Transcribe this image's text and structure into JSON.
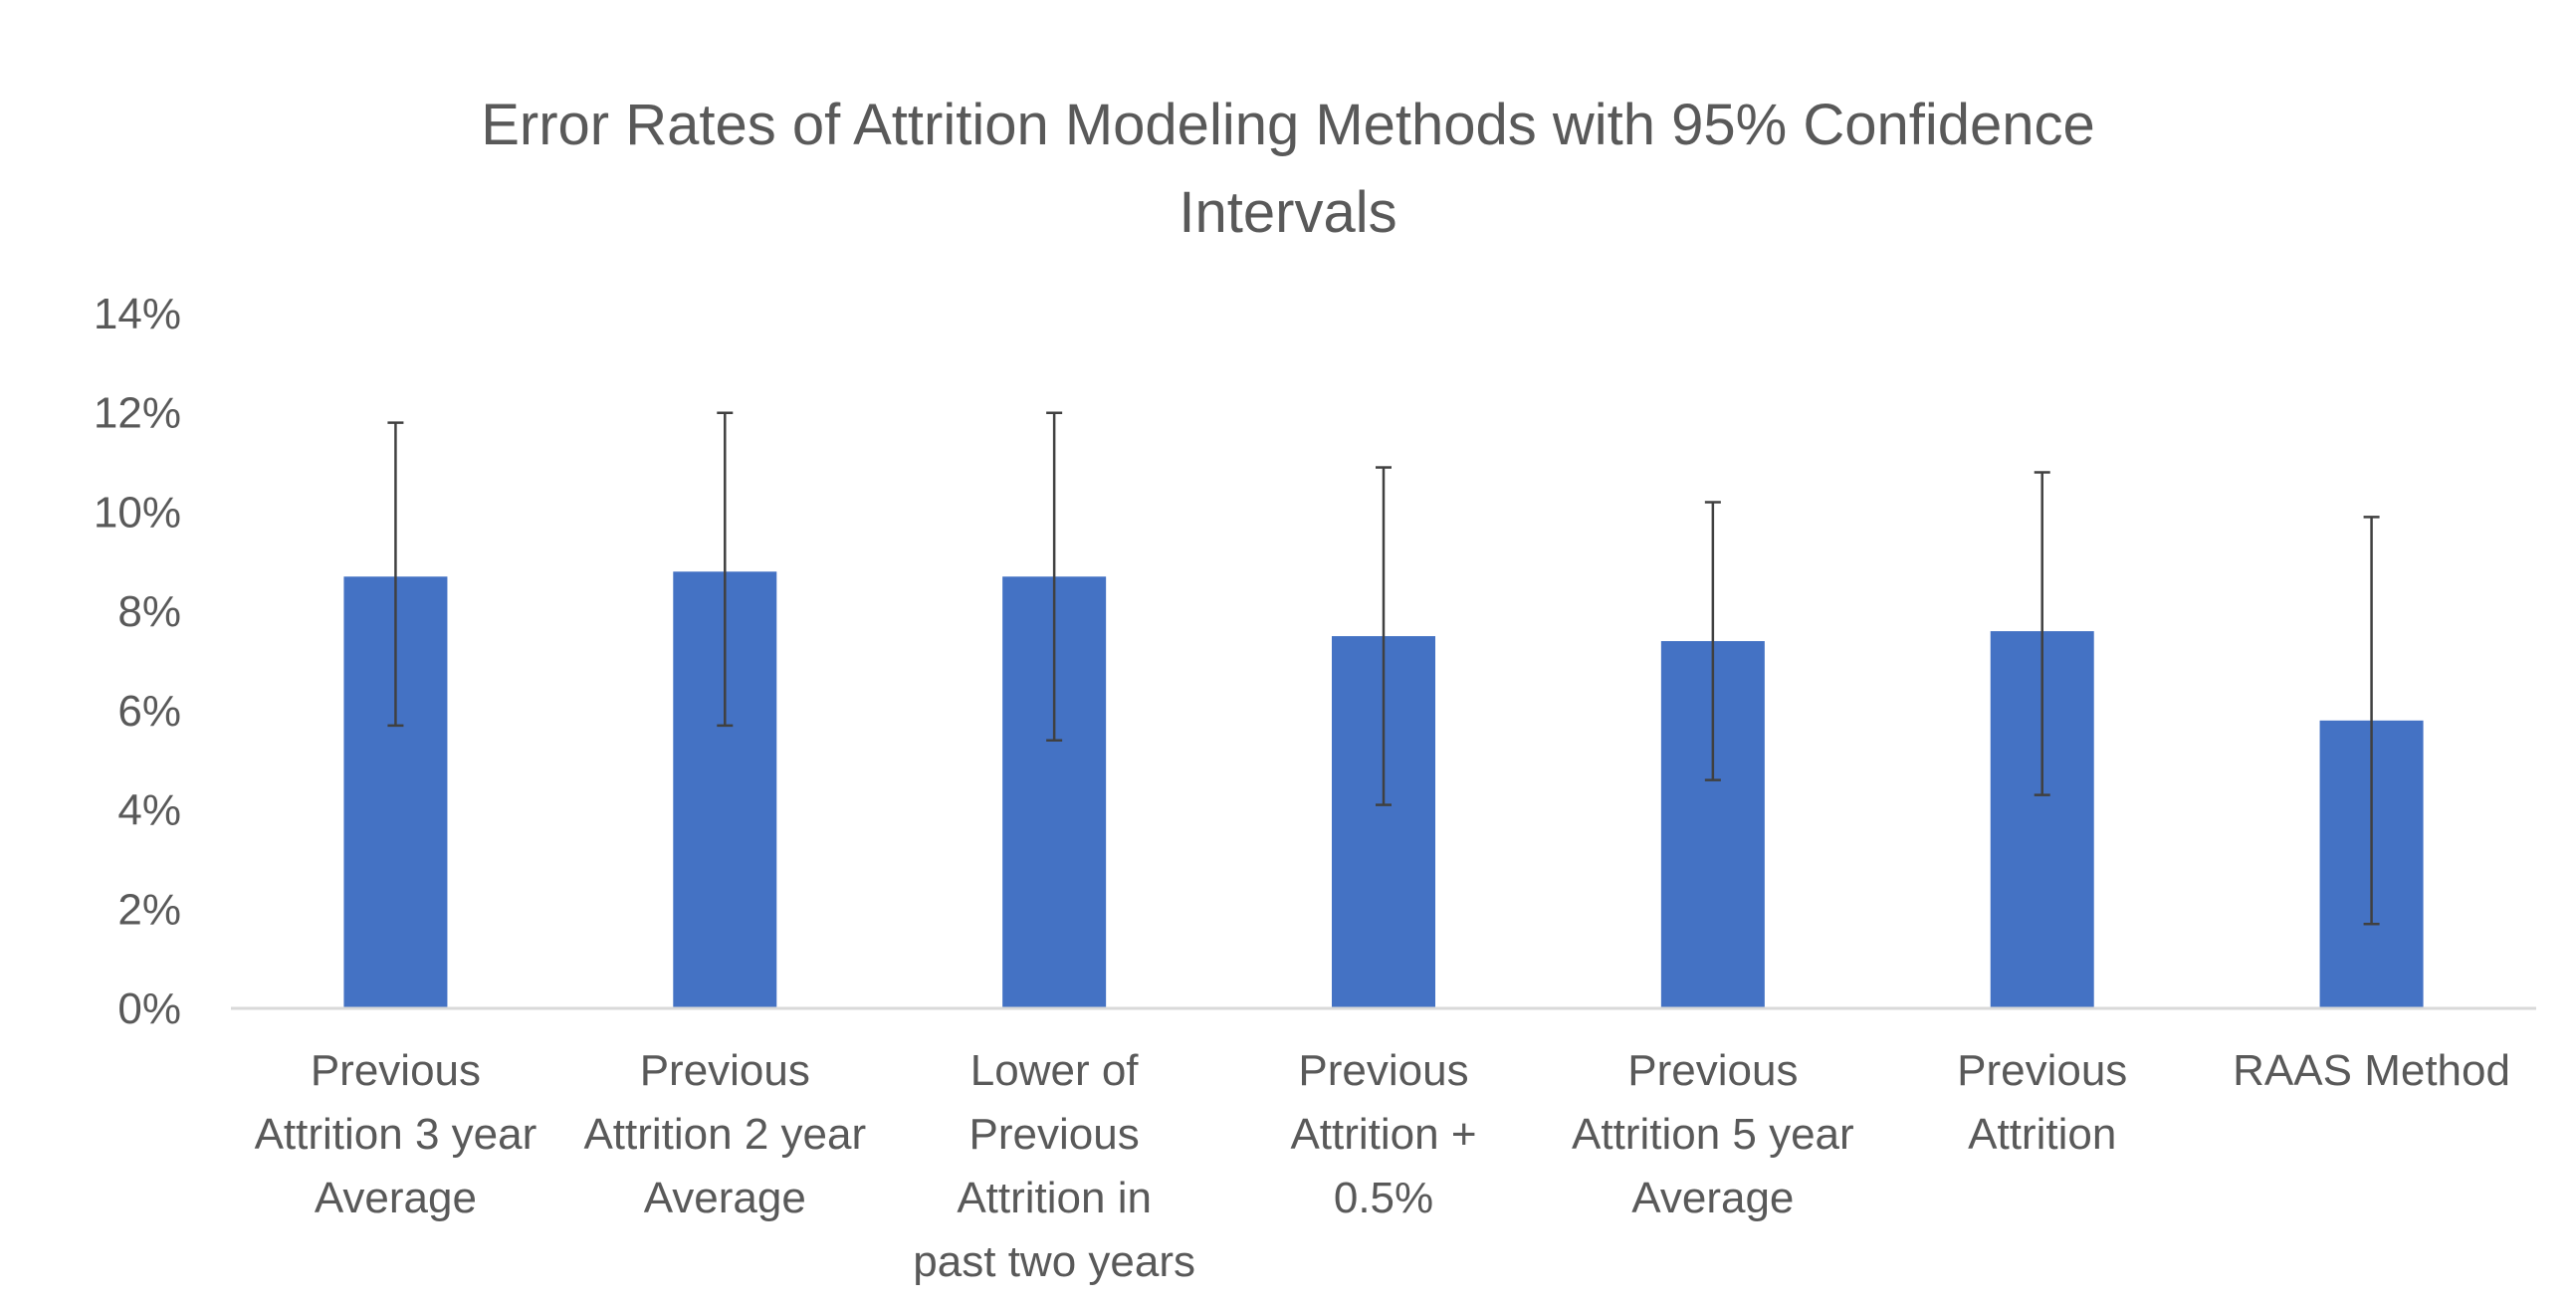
{
  "chart_data": {
    "type": "bar",
    "title_lines": [
      "Error Rates of Attrition Modeling Methods with 95% Confidence",
      "Intervals"
    ],
    "categories": [
      [
        "Previous",
        "Attrition 3 year",
        "Average"
      ],
      [
        "Previous",
        "Attrition 2 year",
        "Average"
      ],
      [
        "Lower of",
        "Previous",
        "Attrition in",
        "past two years"
      ],
      [
        "Previous",
        "Attrition +",
        "0.5%"
      ],
      [
        "Previous",
        "Attrition 5 year",
        "Average"
      ],
      [
        "Previous",
        "Attrition"
      ],
      [
        "RAAS Method"
      ]
    ],
    "series": [
      {
        "values": [
          8.7,
          8.8,
          8.7,
          7.5,
          7.4,
          7.6,
          5.8
        ],
        "error_low": [
          5.7,
          5.7,
          5.4,
          4.1,
          4.6,
          4.3,
          1.7
        ],
        "error_high": [
          11.8,
          12.0,
          12.0,
          10.9,
          10.2,
          10.8,
          9.9
        ],
        "color": "#4472C4"
      }
    ],
    "y_ticks": [
      "0%",
      "2%",
      "4%",
      "6%",
      "8%",
      "10%",
      "12%",
      "14%"
    ],
    "y_unit": "%",
    "ylim": [
      0,
      14
    ],
    "grid": false,
    "legend": "none",
    "colors": {
      "bar": "#4472C4",
      "error_bar": "#404040",
      "axis": "#D9D9D9",
      "text": "#595959"
    }
  }
}
